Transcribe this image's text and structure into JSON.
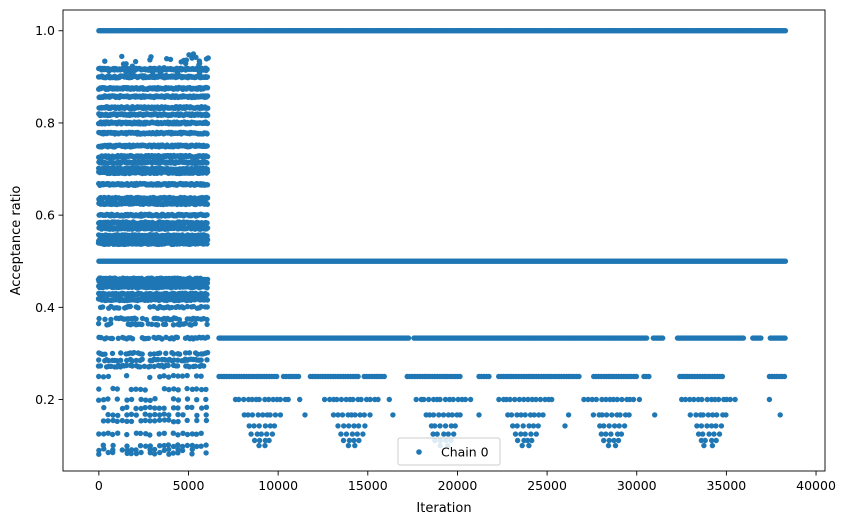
{
  "chart_data": {
    "type": "scatter",
    "title": "",
    "xlabel": "Iteration",
    "ylabel": "Acceptance ratio",
    "xlim": [
      -2000,
      40500
    ],
    "ylim": [
      0.045,
      1.045
    ],
    "xticks": [
      0,
      5000,
      10000,
      15000,
      20000,
      25000,
      30000,
      35000,
      40000
    ],
    "xtick_labels": [
      "0",
      "5000",
      "10000",
      "15000",
      "20000",
      "25000",
      "30000",
      "35000",
      "40000"
    ],
    "yticks": [
      0.2,
      0.4,
      0.6,
      0.8,
      1.0
    ],
    "ytick_labels": [
      "0.2",
      "0.4",
      "0.6",
      "0.8",
      "1.0"
    ],
    "grid": false,
    "legend": {
      "position": "lower-center",
      "entries": [
        "Chain 0"
      ]
    },
    "series": [
      {
        "name": "Chain 0",
        "color": "#1f77b4",
        "marker": "circle",
        "bands": [
          {
            "y": 1.0,
            "x_start": 0,
            "x_end": 38300,
            "density": "dense"
          },
          {
            "y": 0.5,
            "x_start": 0,
            "x_end": 38300,
            "density": "dense"
          },
          {
            "y": 0.3333,
            "x_start": 0,
            "x_end": 38300,
            "density": "gapped"
          },
          {
            "y": 0.25,
            "x_start": 0,
            "x_end": 38300,
            "density": "sparse"
          },
          {
            "y": 0.2,
            "x_start": 8300,
            "x_end": 34600,
            "density": "clusters"
          },
          {
            "y": 0.1667,
            "x_start": 8300,
            "x_end": 38000,
            "density": "clusters"
          },
          {
            "y": 0.1429,
            "x_start": 8800,
            "x_end": 34400,
            "density": "clusters"
          },
          {
            "y": 0.125,
            "x_start": 8600,
            "x_end": 34300,
            "density": "clusters"
          },
          {
            "y": 0.1111,
            "x_start": 8800,
            "x_end": 34200,
            "density": "clusters"
          },
          {
            "y": 0.1,
            "x_start": 14000,
            "x_end": 34500,
            "density": "clusters"
          }
        ],
        "early_phase": {
          "x_start": 0,
          "x_end": 6100,
          "y_min": 0.07,
          "y_max": 0.95,
          "description_levels": [
            0.9167,
            0.9,
            0.875,
            0.8571,
            0.8333,
            0.8182,
            0.8,
            0.7778,
            0.75,
            0.7273,
            0.7143,
            0.7,
            0.6923,
            0.6667,
            0.6364,
            0.625,
            0.6,
            0.5833,
            0.5714,
            0.5556,
            0.5455,
            0.5385,
            0.4615,
            0.4545,
            0.4444,
            0.4286,
            0.4167,
            0.4,
            0.375,
            0.3636,
            0.3333,
            0.3,
            0.2857,
            0.2727,
            0.25,
            0.2222,
            0.2,
            0.1818,
            0.1667,
            0.1538,
            0.125,
            0.1,
            0.0909,
            0.0833
          ]
        }
      }
    ]
  }
}
